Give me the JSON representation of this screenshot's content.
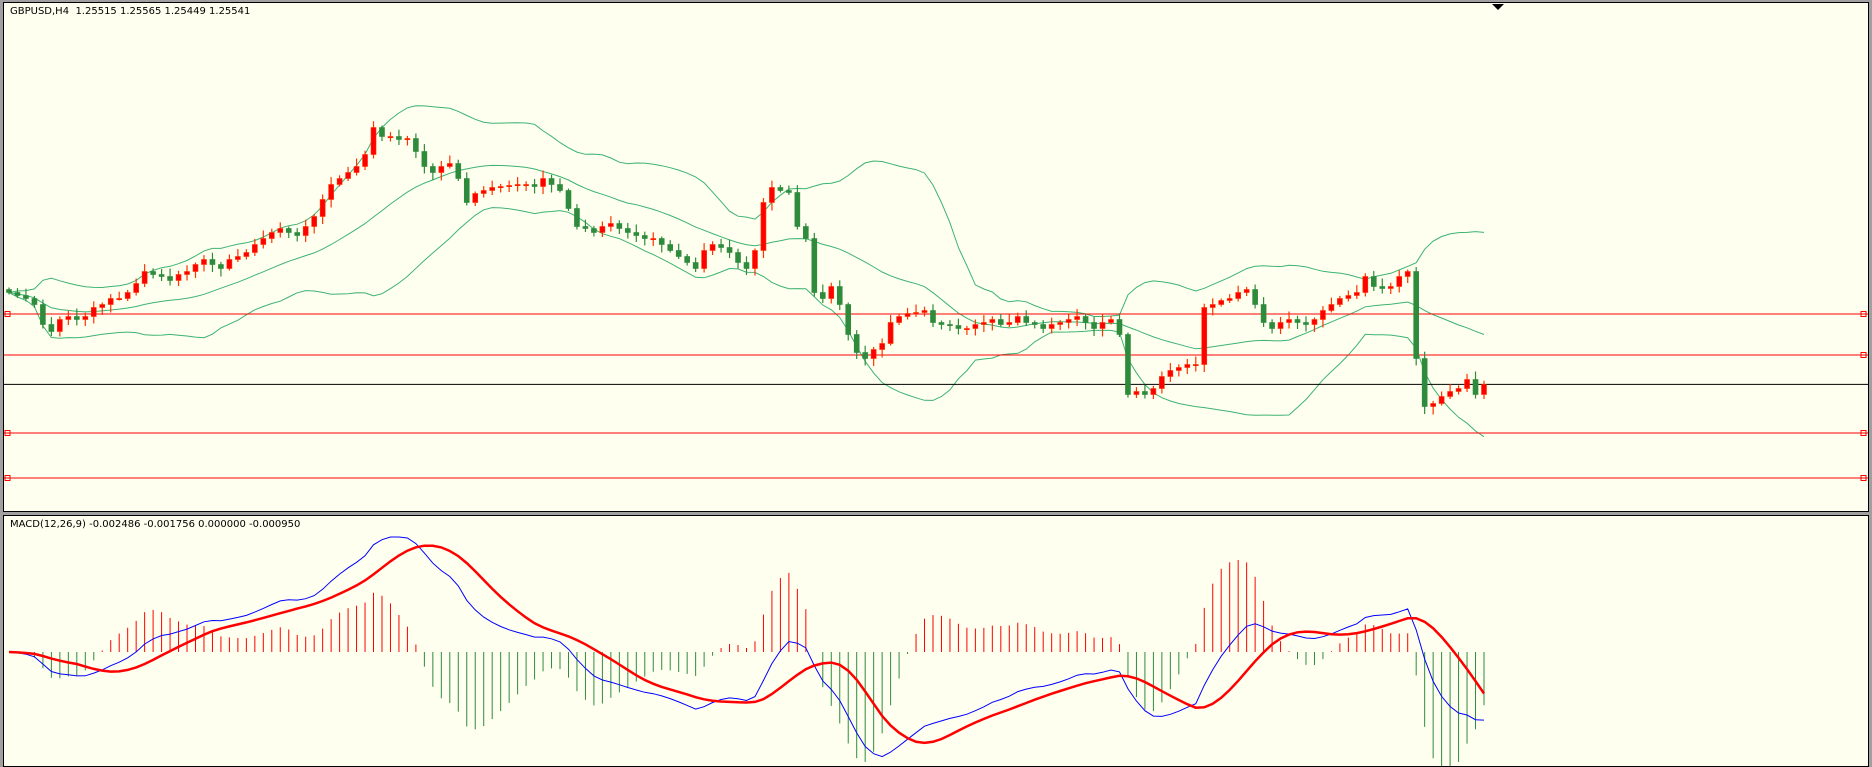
{
  "header": {
    "symbol_label": "GBPUSD,H4",
    "ohlc_label": "1.25515 1.25565 1.25449 1.25541"
  },
  "macd_header": {
    "label": "MACD(12,26,9)",
    "values_label": "-0.002486 -0.001756 0.000000 -0.000950"
  },
  "colors": {
    "background": "#fffff0",
    "bull": "#ff0000",
    "bull_outline": "#ff3300",
    "bear": "#2e8b3c",
    "bands": "#3cb371",
    "levels": "#ff0000",
    "price_line": "#000000",
    "macd_line": "#0000ff",
    "signal_line": "#ff0000"
  },
  "chart_data": [
    {
      "type": "candlestick",
      "title": "GBPUSD,H4",
      "ohlc_last": {
        "open": 1.25515,
        "high": 1.25565,
        "low": 1.25449,
        "close": 1.25541
      },
      "close": [
        1.2646,
        1.2643,
        1.264,
        1.2634,
        1.2614,
        1.2607,
        1.2619,
        1.2622,
        1.2619,
        1.2622,
        1.2631,
        1.2634,
        1.264,
        1.264,
        1.2646,
        1.2655,
        1.2667,
        1.2664,
        1.2662,
        1.2658,
        1.2664,
        1.2667,
        1.2674,
        1.2679,
        1.2674,
        1.267,
        1.2679,
        1.2682,
        1.2686,
        1.2694,
        1.27,
        1.2706,
        1.271,
        1.2706,
        1.2703,
        1.2712,
        1.2722,
        1.2739,
        1.2754,
        1.276,
        1.2766,
        1.2772,
        1.2784,
        1.2811,
        1.2802,
        1.2802,
        1.2799,
        1.28,
        1.2787,
        1.2772,
        1.2766,
        1.2772,
        1.2775,
        1.276,
        1.2736,
        1.2745,
        1.2748,
        1.2751,
        1.2752,
        1.2753,
        1.2754,
        1.2754,
        1.2752,
        1.276,
        1.2754,
        1.2748,
        1.273,
        1.2712,
        1.271,
        1.2706,
        1.2712,
        1.2715,
        1.271,
        1.2706,
        1.2703,
        1.27,
        1.27,
        1.2694,
        1.2688,
        1.2682,
        1.2676,
        1.267,
        1.2688,
        1.2694,
        1.2691,
        1.2686,
        1.2676,
        1.267,
        1.2688,
        1.2736,
        1.2751,
        1.2748,
        1.2746,
        1.2712,
        1.27,
        1.2646,
        1.264,
        1.2652,
        1.2634,
        1.2604,
        1.2586,
        1.258,
        1.2589,
        1.2595,
        1.2616,
        1.2622,
        1.2625,
        1.2626,
        1.2628,
        1.2616,
        1.2614,
        1.2613,
        1.261,
        1.261,
        1.2614,
        1.2616,
        1.2619,
        1.2614,
        1.2616,
        1.2622,
        1.2616,
        1.2614,
        1.261,
        1.2614,
        1.2616,
        1.2619,
        1.2622,
        1.2616,
        1.261,
        1.2616,
        1.2619,
        1.2604,
        1.2544,
        1.2547,
        1.2544,
        1.255,
        1.2562,
        1.2568,
        1.2571,
        1.2574,
        1.2574,
        1.2631,
        1.2634,
        1.2638,
        1.264,
        1.2646,
        1.2649,
        1.2634,
        1.2616,
        1.261,
        1.2616,
        1.2619,
        1.2616,
        1.2614,
        1.2619,
        1.2628,
        1.2634,
        1.264,
        1.2643,
        1.2646,
        1.2662,
        1.2652,
        1.265,
        1.2652,
        1.2662,
        1.2667,
        1.258,
        1.2532,
        1.2535,
        1.2542,
        1.2547,
        1.255,
        1.2559,
        1.2544,
        1.2554
      ],
      "indicators": {
        "bollinger_bands": {
          "period": 20,
          "deviation": 2
        },
        "macd": {
          "fast": 12,
          "slow": 26,
          "signal": 9
        }
      },
      "horizontal_levels": [
        1.26245,
        1.25835,
        1.25055,
        1.24605
      ],
      "current_price": 1.25541,
      "grid": false
    }
  ]
}
